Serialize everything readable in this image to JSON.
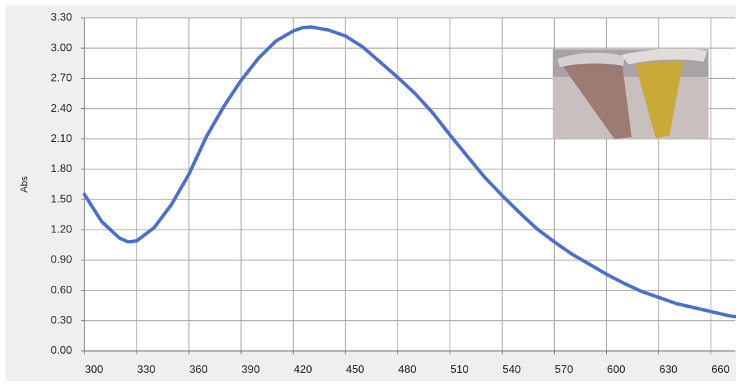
{
  "chart_data": {
    "type": "line",
    "y_label": "Abs",
    "x": [
      300,
      310,
      320,
      325,
      330,
      340,
      350,
      360,
      370,
      380,
      390,
      400,
      410,
      420,
      425,
      430,
      440,
      450,
      460,
      470,
      480,
      490,
      500,
      510,
      520,
      530,
      540,
      550,
      560,
      570,
      580,
      590,
      600,
      610,
      620,
      630,
      640,
      650,
      660,
      670,
      674
    ],
    "series": [
      {
        "name": "Abs",
        "color": "#4a70d2",
        "values": [
          1.55,
          1.28,
          1.12,
          1.08,
          1.09,
          1.22,
          1.45,
          1.75,
          2.12,
          2.42,
          2.68,
          2.9,
          3.07,
          3.17,
          3.2,
          3.21,
          3.18,
          3.12,
          3.01,
          2.86,
          2.71,
          2.55,
          2.36,
          2.14,
          1.93,
          1.72,
          1.54,
          1.37,
          1.21,
          1.08,
          0.96,
          0.86,
          0.76,
          0.67,
          0.59,
          0.53,
          0.47,
          0.43,
          0.39,
          0.35,
          0.34
        ]
      }
    ],
    "xlim": [
      300,
      674
    ],
    "ylim": [
      0,
      3.3
    ],
    "xticks": [
      300,
      330,
      360,
      390,
      420,
      450,
      480,
      510,
      540,
      570,
      600,
      630,
      660
    ],
    "yticks": [
      {
        "value": 0,
        "label": "0.00"
      },
      {
        "value": 0.3,
        "label": "0.30"
      },
      {
        "value": 0.6,
        "label": "0.60"
      },
      {
        "value": 0.9,
        "label": "0.90"
      },
      {
        "value": 1.2,
        "label": "1.20"
      },
      {
        "value": 1.5,
        "label": "1.50"
      },
      {
        "value": 1.8,
        "label": "1.80"
      },
      {
        "value": 2.1,
        "label": "2.10"
      },
      {
        "value": 2.4,
        "label": "2.40"
      },
      {
        "value": 2.7,
        "label": "2.70"
      },
      {
        "value": 3.0,
        "label": "3.00"
      },
      {
        "value": 3.3,
        "label": "3.30"
      }
    ],
    "grid": true
  }
}
